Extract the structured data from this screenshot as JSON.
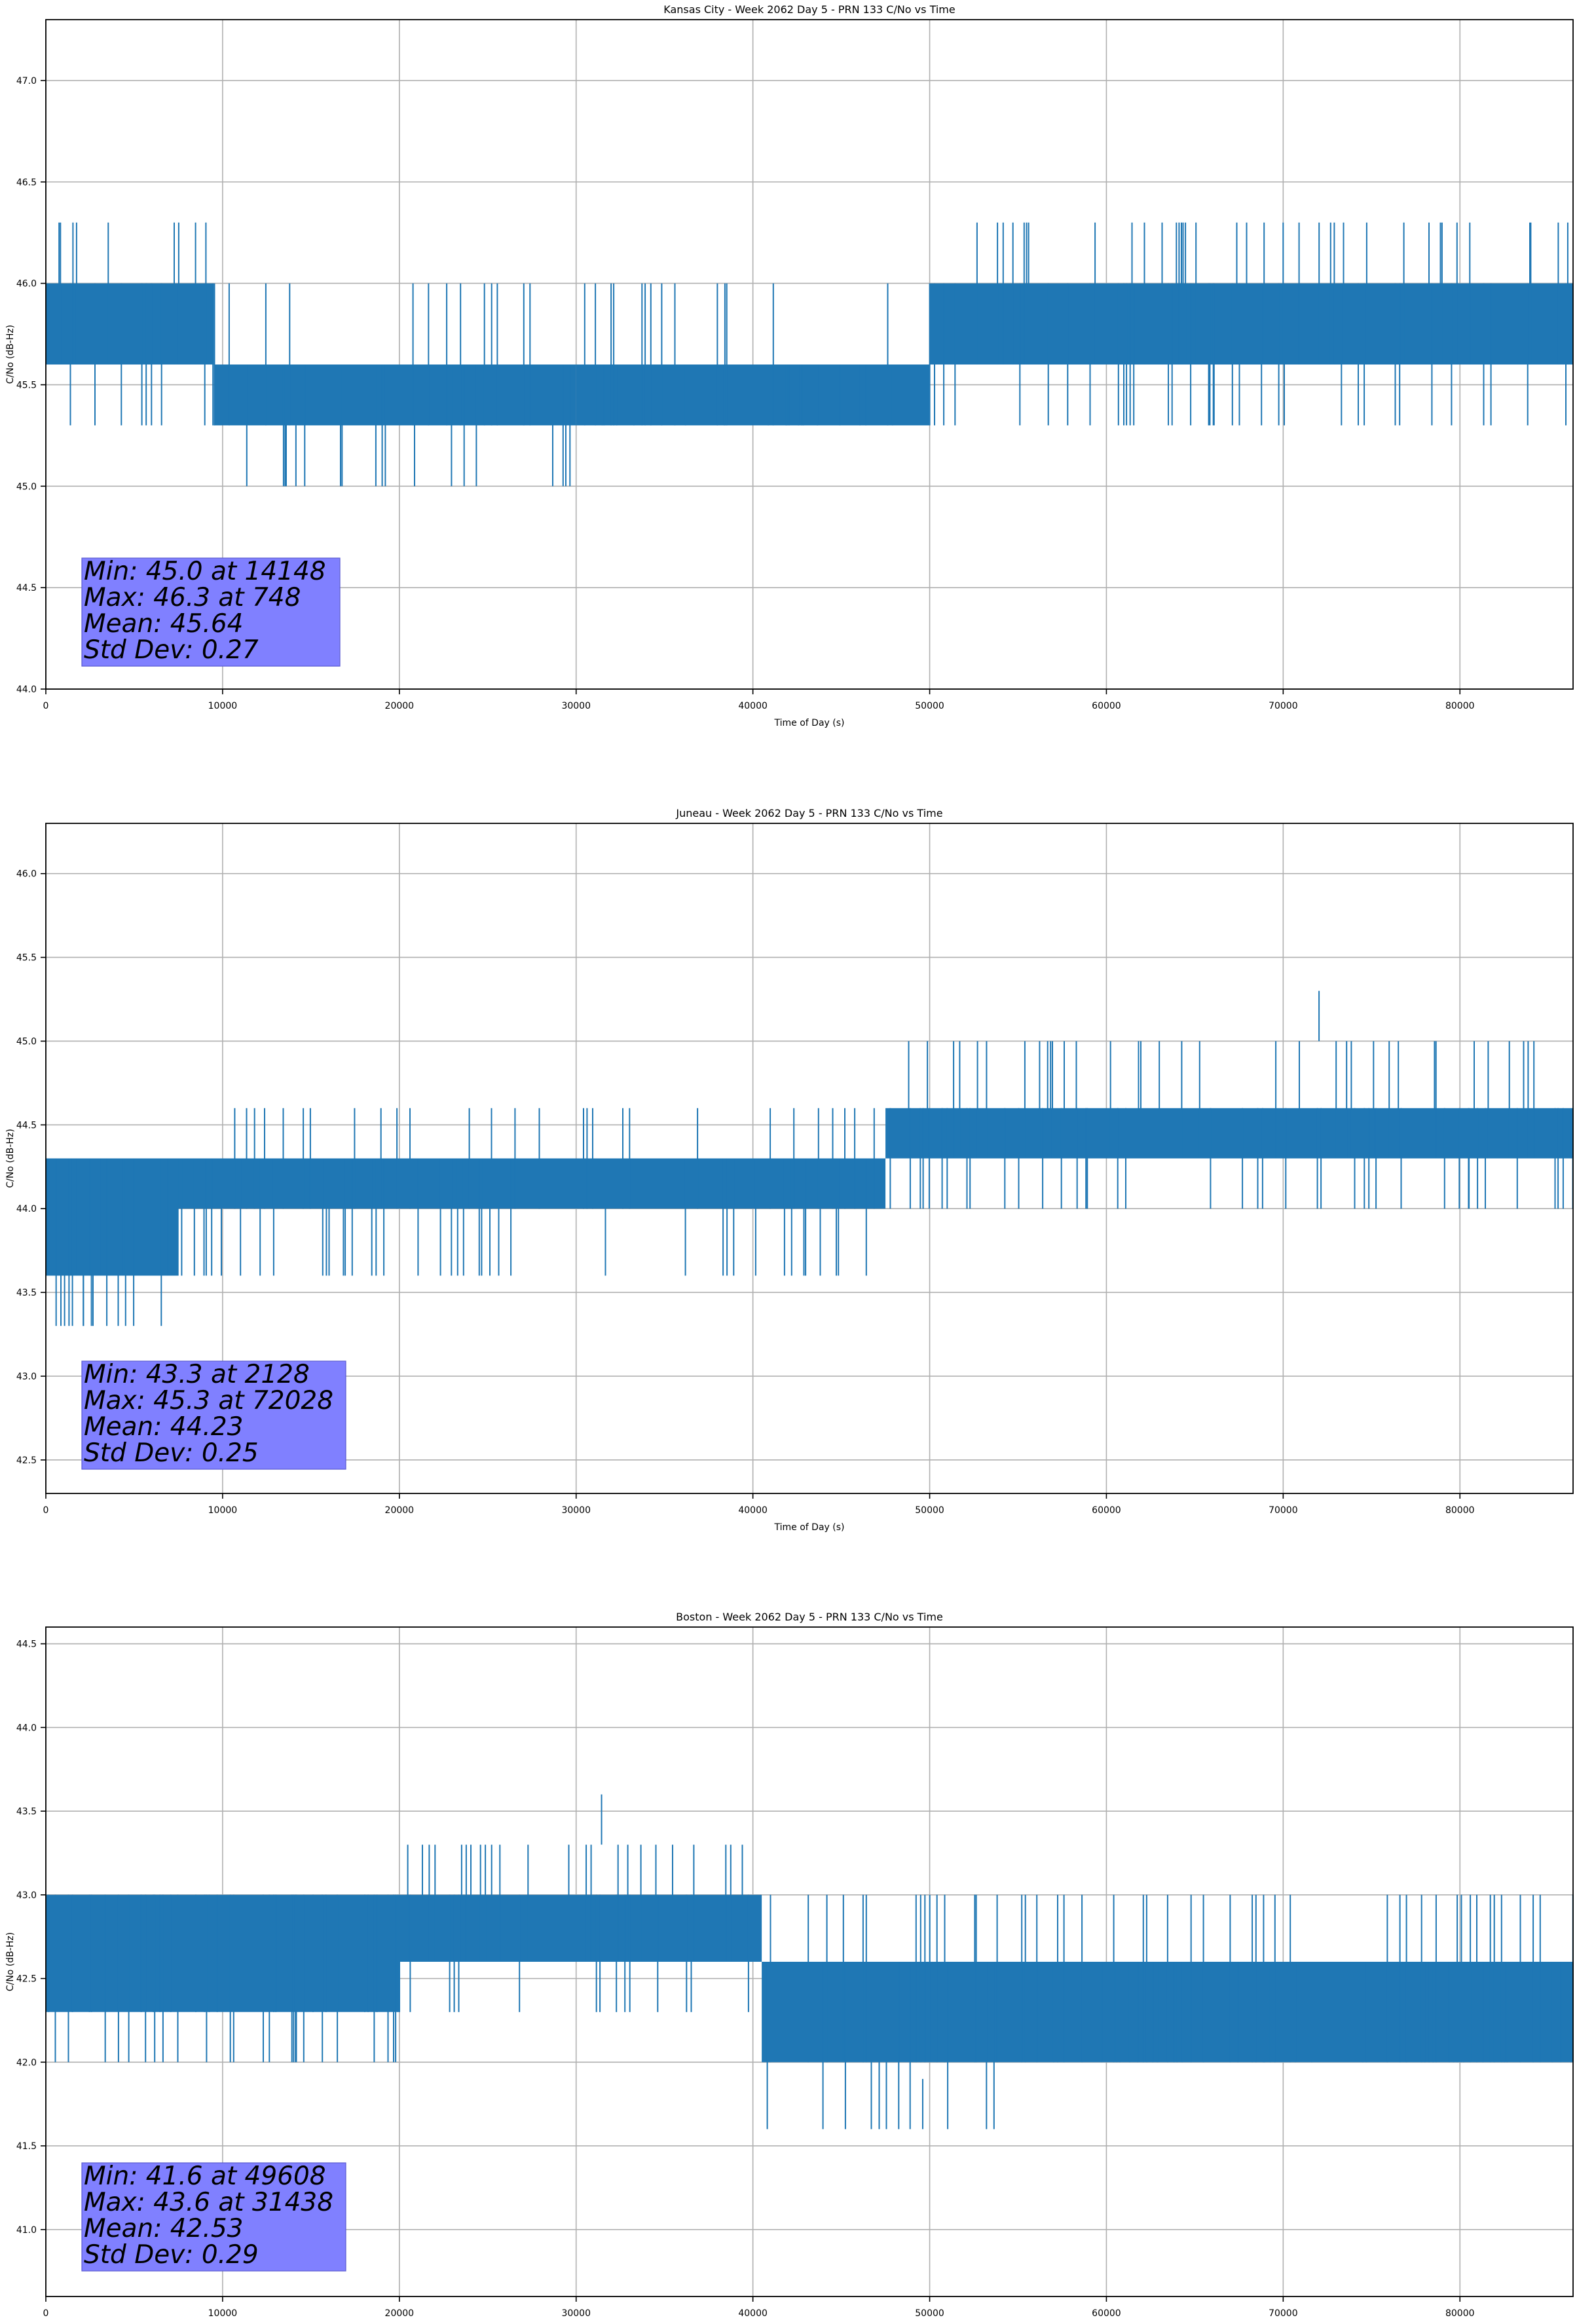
{
  "chart_data": [
    {
      "type": "line",
      "title": "Kansas City - Week 2062 Day 5 - PRN 133 C/No vs Time",
      "xlabel": "Time of Day (s)",
      "ylabel": "C/No (dB-Hz)",
      "xlim": [
        0,
        86400
      ],
      "ylim": [
        44.0,
        47.3
      ],
      "xticks": [
        "0",
        "10000",
        "20000",
        "30000",
        "40000",
        "50000",
        "60000",
        "70000",
        "80000"
      ],
      "yticks": [
        "44.0",
        "44.5",
        "45.0",
        "45.5",
        "46.0",
        "46.5",
        "47.0"
      ],
      "grid": true,
      "color": "#1f77b4",
      "series": [
        {
          "x_range": [
            0,
            86400
          ],
          "segments": [
            {
              "x": [
                0,
                9500
              ],
              "low": 45.6,
              "high": 46.0
            },
            {
              "x": [
                9500,
                13000
              ],
              "low": 45.3,
              "high": 45.6
            },
            {
              "x": [
                13000,
                30000
              ],
              "low": 45.3,
              "high": 45.6
            },
            {
              "x": [
                30000,
                50000
              ],
              "low": 45.3,
              "high": 45.6
            },
            {
              "x": [
                50000,
                86400
              ],
              "low": 45.6,
              "high": 46.0
            }
          ],
          "dip_values": [
            45.3,
            45.0,
            45.3,
            45.3
          ],
          "spike_values": [
            46.3,
            46.3,
            46.3
          ],
          "min": {
            "value": 45.0,
            "x": 14148
          },
          "max": {
            "value": 46.3,
            "x": 748
          }
        }
      ],
      "stats": {
        "line1": "Min: 45.0 at 14148",
        "line2": "Max: 46.3 at 748",
        "line3": "Mean: 45.64",
        "line4": "Std Dev: 0.27"
      }
    },
    {
      "type": "line",
      "title": "Juneau - Week 2062 Day 5 - PRN 133 C/No vs Time",
      "xlabel": "Time of Day (s)",
      "ylabel": "C/No (dB-Hz)",
      "xlim": [
        0,
        86400
      ],
      "ylim": [
        42.3,
        46.3
      ],
      "xticks": [
        "0",
        "10000",
        "20000",
        "30000",
        "40000",
        "50000",
        "60000",
        "70000",
        "80000"
      ],
      "yticks": [
        "42.5",
        "43.0",
        "43.5",
        "44.0",
        "44.5",
        "45.0",
        "45.5",
        "46.0"
      ],
      "grid": true,
      "color": "#1f77b4",
      "series": [
        {
          "x_range": [
            0,
            86400
          ],
          "min": {
            "value": 43.3,
            "x": 2128
          },
          "max": {
            "value": 45.3,
            "x": 72028
          }
        }
      ],
      "stats": {
        "line1": "Min: 43.3 at 2128",
        "line2": "Max: 45.3 at 72028",
        "line3": "Mean: 44.23",
        "line4": "Std Dev: 0.25"
      }
    },
    {
      "type": "line",
      "title": "Boston - Week 2062 Day 5 - PRN 133 C/No vs Time",
      "xlabel": "Time of Day (s)",
      "ylabel": "C/No (dB-Hz)",
      "xlim": [
        0,
        86400
      ],
      "ylim": [
        40.6,
        44.6
      ],
      "xticks": [
        "0",
        "10000",
        "20000",
        "30000",
        "40000",
        "50000",
        "60000",
        "70000",
        "80000"
      ],
      "yticks": [
        "41.0",
        "41.5",
        "42.0",
        "42.5",
        "43.0",
        "43.5",
        "44.0",
        "44.5"
      ],
      "grid": true,
      "color": "#1f77b4",
      "series": [
        {
          "x_range": [
            0,
            86400
          ],
          "min": {
            "value": 41.6,
            "x": 49608
          },
          "max": {
            "value": 43.6,
            "x": 31438
          }
        }
      ],
      "stats": {
        "line1": "Min: 41.6 at 49608",
        "line2": "Max: 43.6 at 31438",
        "line3": "Mean: 42.53",
        "line4": "Std Dev: 0.29"
      }
    }
  ]
}
